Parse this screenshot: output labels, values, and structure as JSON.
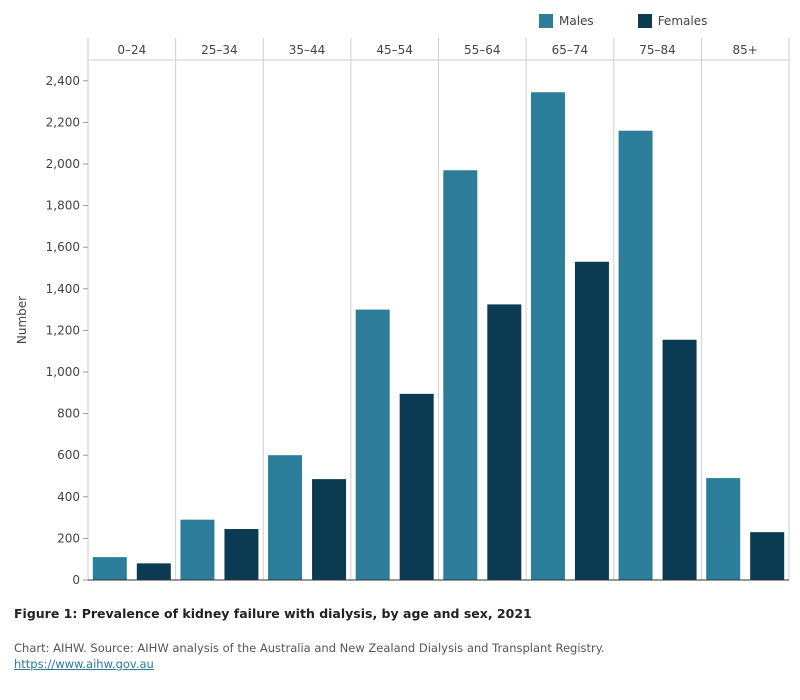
{
  "chart_data": {
    "type": "bar",
    "title": "Figure 1: Prevalence of kidney failure with dialysis, by age and sex, 2021",
    "xlabel": "",
    "ylabel": "Number",
    "ylim": [
      0,
      2500
    ],
    "yticks": [
      0,
      200,
      400,
      600,
      800,
      1000,
      1200,
      1400,
      1600,
      1800,
      2000,
      2200,
      2400
    ],
    "ytick_labels": [
      "0",
      "200",
      "400",
      "600",
      "800",
      "1,000",
      "1,200",
      "1,400",
      "1,600",
      "1,800",
      "2,000",
      "2,200",
      "2,400"
    ],
    "categories": [
      "0–24",
      "25–34",
      "35–44",
      "45–54",
      "55–64",
      "65–74",
      "75–84",
      "85+"
    ],
    "series": [
      {
        "name": "Males",
        "color": "#2b7d99",
        "values": [
          110,
          290,
          600,
          1300,
          1970,
          2345,
          2160,
          490
        ]
      },
      {
        "name": "Females",
        "color": "#0b3a53",
        "values": [
          80,
          245,
          485,
          895,
          1325,
          1530,
          1155,
          230
        ]
      }
    ],
    "legend_position": "top-right"
  },
  "legend": {
    "males": "Males",
    "females": "Females",
    "males_color": "#2b7d99",
    "females_color": "#0b3a53"
  },
  "caption": "Figure 1: Prevalence of kidney failure with dialysis, by age and sex, 2021",
  "source": "Chart: AIHW. Source: AIHW analysis of the Australia and New Zealand Dialysis and Transplant Registry.",
  "link": "https://www.aihw.gov.au"
}
